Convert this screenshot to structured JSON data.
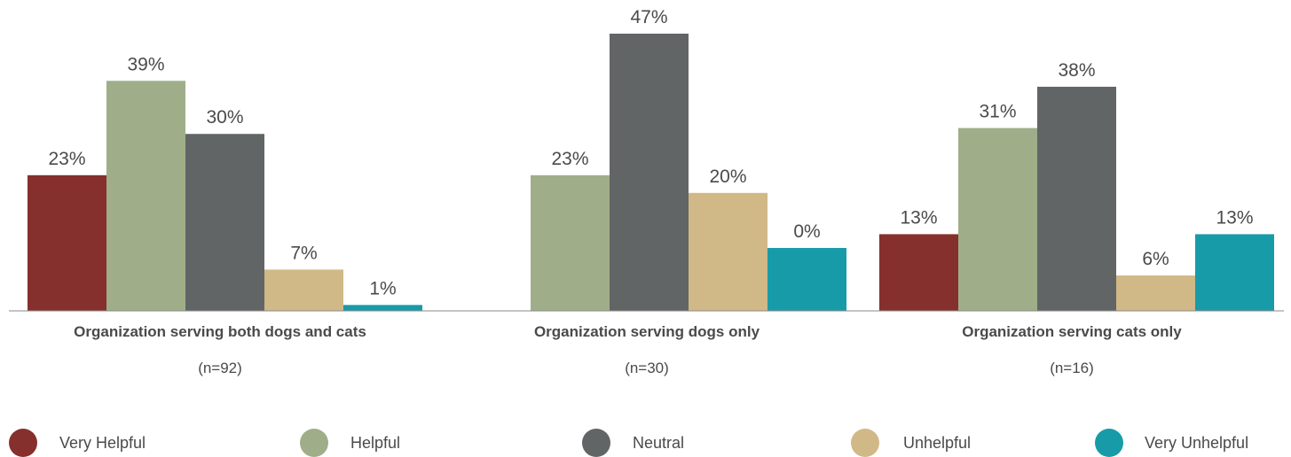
{
  "chart_data": {
    "type": "bar",
    "categories": [
      "Organization serving both dogs and cats",
      "Organization serving dogs only",
      "Organization serving cats only"
    ],
    "sample_sizes": [
      "(n=92)",
      "(n=30)",
      "(n=16)"
    ],
    "series": [
      {
        "name": "Very Helpful",
        "color": "#85302c",
        "values": [
          23,
          null,
          13
        ],
        "labels": [
          "23%",
          "",
          "13%"
        ]
      },
      {
        "name": "Helpful",
        "color": "#9fae89",
        "values": [
          39,
          23,
          31
        ],
        "labels": [
          "39%",
          "23%",
          "31%"
        ]
      },
      {
        "name": "Neutral",
        "color": "#626566",
        "values": [
          30,
          47,
          38
        ],
        "labels": [
          "30%",
          "47%",
          "38%"
        ]
      },
      {
        "name": "Unhelpful",
        "color": "#d1b887",
        "values": [
          7,
          20,
          6
        ],
        "labels": [
          "7%",
          "20%",
          "6%"
        ]
      },
      {
        "name": "Very Unhelpful",
        "color": "#189ba8",
        "values": [
          1,
          0,
          13
        ],
        "labels": [
          "1%",
          "0%",
          "13%"
        ]
      }
    ],
    "ylim": [
      0,
      47
    ],
    "grid": false,
    "legend": "bottom"
  }
}
